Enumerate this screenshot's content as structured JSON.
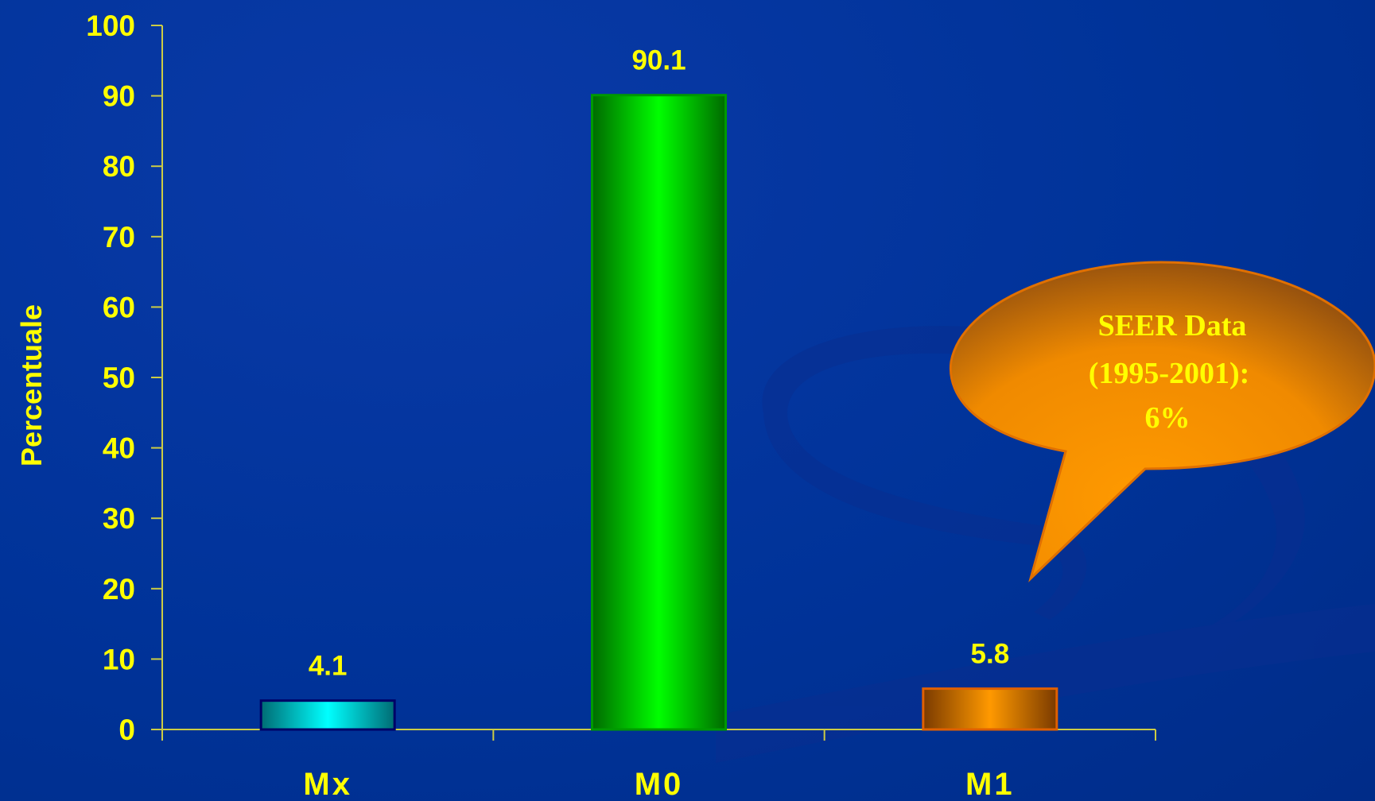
{
  "chart_data": {
    "type": "bar",
    "categories": [
      "Mx",
      "M0",
      "M1"
    ],
    "values": [
      4.1,
      90.1,
      5.8
    ],
    "data_labels": [
      "4.1",
      "90.1",
      "5.8"
    ],
    "ylabel": "Percentuale",
    "ylim": [
      0,
      100
    ],
    "yticks": [
      "0",
      "10",
      "20",
      "30",
      "40",
      "50",
      "60",
      "70",
      "80",
      "90",
      "100"
    ],
    "grid": false,
    "bar_colors": [
      "#00e5e5",
      "#00ee00",
      "#ff9900"
    ]
  },
  "callout": {
    "line1": "SEER Data",
    "line2": "(1995-2001):",
    "line3": "6%"
  },
  "colors": {
    "background": "#003399",
    "text": "#ffff00",
    "axis": "#cccc44",
    "callout_fill": "#ff9900",
    "callout_stroke": "#e07000"
  }
}
